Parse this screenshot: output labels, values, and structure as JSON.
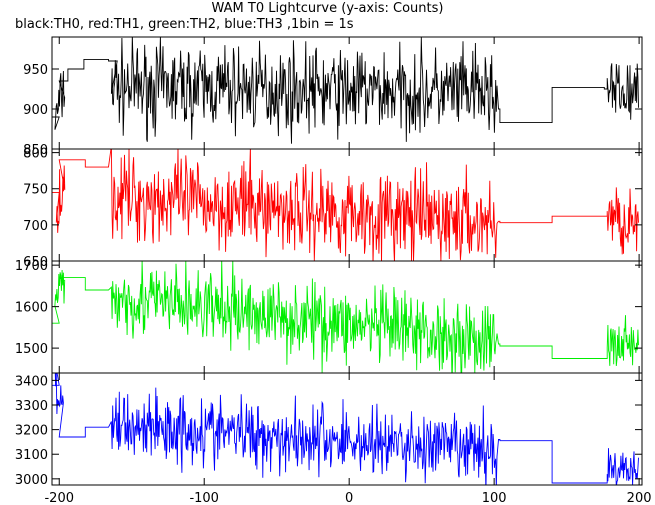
{
  "title": "WAM T0 Lightcurve (y-axis: Counts)",
  "subtitle": "black:TH0, red:TH1, green:TH2, blue:TH3 ,1bin = 1s",
  "chart_data": {
    "type": "line",
    "title": "WAM T0 Lightcurve (y-axis: Counts)",
    "subtitle": "black:TH0, red:TH1, green:TH2, blue:TH3 ,1bin = 1s",
    "x_ticks": [
      -200,
      -100,
      0,
      100,
      200
    ],
    "xlim": [
      -205,
      202
    ],
    "panels": [
      {
        "name": "TH0",
        "color": "#000000",
        "ylim": [
          850,
          990
        ],
        "y_ticks": [
          850,
          900,
          950
        ],
        "steps": [
          [
            -205,
            -200,
            890
          ],
          [
            -200,
            -194,
            935
          ],
          [
            -194,
            -183,
            950
          ],
          [
            -183,
            -166,
            962
          ],
          [
            -166,
            -160,
            960
          ],
          [
            103,
            104,
            900
          ],
          [
            104,
            140,
            883
          ],
          [
            140,
            176,
            927
          ],
          [
            176,
            178,
            925
          ]
        ],
        "noisy": [
          {
            "x0": -203,
            "x1": -196,
            "mean_start": 885,
            "mean_end": 930,
            "amp": 50
          },
          {
            "x0": -164,
            "x1": 102,
            "mean_start": 928,
            "mean_end": 920,
            "amp": 70
          },
          {
            "x0": 178,
            "x1": 200,
            "mean_start": 920,
            "mean_end": 918,
            "amp": 55
          }
        ]
      },
      {
        "name": "TH1",
        "color": "#ff0000",
        "ylim": [
          650,
          805
        ],
        "y_ticks": [
          650,
          700,
          750,
          800
        ],
        "steps": [
          [
            -205,
            -200,
            745
          ],
          [
            -200,
            -193,
            790
          ],
          [
            -193,
            -182,
            790
          ],
          [
            -182,
            -166,
            780
          ],
          [
            103,
            104,
            705
          ],
          [
            104,
            140,
            703
          ],
          [
            140,
            176,
            712
          ],
          [
            176,
            178,
            712
          ]
        ],
        "noisy": [
          {
            "x0": -202,
            "x1": -196,
            "mean_start": 725,
            "mean_end": 765,
            "amp": 55
          },
          {
            "x0": -164,
            "x1": 102,
            "mean_start": 740,
            "mean_end": 702,
            "amp": 80
          },
          {
            "x0": 178,
            "x1": 200,
            "mean_start": 712,
            "mean_end": 700,
            "amp": 60
          }
        ]
      },
      {
        "name": "TH2",
        "color": "#00ee00",
        "ylim": [
          1440,
          1710
        ],
        "y_ticks": [
          1500,
          1600,
          1700
        ],
        "steps": [
          [
            -205,
            -200,
            1560
          ],
          [
            -200,
            -193,
            1670
          ],
          [
            -193,
            -182,
            1670
          ],
          [
            -182,
            -166,
            1640
          ],
          [
            103,
            104,
            1510
          ],
          [
            104,
            140,
            1505
          ],
          [
            140,
            176,
            1475
          ],
          [
            176,
            178,
            1475
          ]
        ],
        "noisy": [
          {
            "x0": -203,
            "x1": -196,
            "mean_start": 1600,
            "mean_end": 1660,
            "amp": 90
          },
          {
            "x0": -164,
            "x1": 102,
            "mean_start": 1625,
            "mean_end": 1515,
            "amp": 120
          },
          {
            "x0": 178,
            "x1": 200,
            "mean_start": 1505,
            "mean_end": 1520,
            "amp": 90
          }
        ]
      },
      {
        "name": "TH3",
        "color": "#0000ff",
        "ylim": [
          2975,
          3430
        ],
        "y_ticks": [
          3000,
          3100,
          3200,
          3300,
          3400
        ],
        "steps": [
          [
            -205,
            -200,
            3380
          ],
          [
            -200,
            -193,
            3170
          ],
          [
            -193,
            -182,
            3170
          ],
          [
            -182,
            -166,
            3210
          ],
          [
            103,
            104,
            3160
          ],
          [
            104,
            140,
            3155
          ],
          [
            140,
            176,
            2983
          ],
          [
            176,
            178,
            2983
          ]
        ],
        "noisy": [
          {
            "x0": -203,
            "x1": -197,
            "mean_start": 3380,
            "mean_end": 3250,
            "amp": 120
          },
          {
            "x0": -164,
            "x1": 102,
            "mean_start": 3225,
            "mean_end": 3110,
            "amp": 190
          },
          {
            "x0": 178,
            "x1": 200,
            "mean_start": 3050,
            "mean_end": 3020,
            "amp": 110
          }
        ]
      }
    ]
  }
}
